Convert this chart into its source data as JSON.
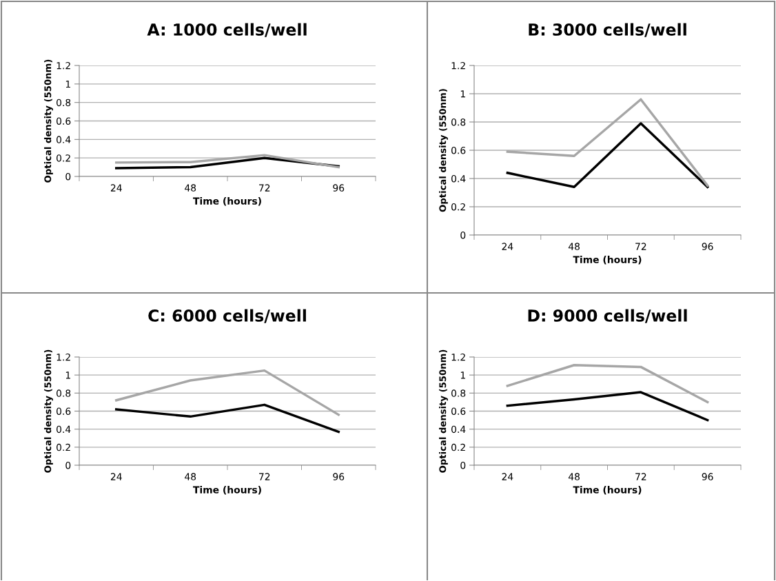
{
  "chart_data": [
    {
      "type": "line",
      "title": "A: 1000 cells/well",
      "xlabel": "Time (hours)",
      "ylabel": "Optical density (550nm)",
      "categories": [
        "24",
        "48",
        "72",
        "96"
      ],
      "ylim": [
        0,
        1.2
      ],
      "yticks": [
        0,
        0.2,
        0.4,
        0.6,
        0.8,
        1,
        1.2
      ],
      "grid": "y",
      "legend": false,
      "marker": "none",
      "series": [
        {
          "color": "#000000",
          "values": [
            0.09,
            0.1,
            0.2,
            0.11
          ]
        },
        {
          "color": "#a6a6a6",
          "values": [
            0.15,
            0.155,
            0.23,
            0.1
          ]
        }
      ]
    },
    {
      "type": "line",
      "title": "B: 3000 cells/well",
      "xlabel": "Time (hours)",
      "ylabel": "Optical density (550nm)",
      "categories": [
        "24",
        "48",
        "72",
        "96"
      ],
      "ylim": [
        0,
        1.2
      ],
      "yticks": [
        0,
        0.2,
        0.4,
        0.6,
        0.8,
        1,
        1.2
      ],
      "grid": "y",
      "legend": false,
      "marker": "none",
      "series": [
        {
          "color": "#000000",
          "values": [
            0.44,
            0.34,
            0.79,
            0.34
          ]
        },
        {
          "color": "#a6a6a6",
          "values": [
            0.59,
            0.56,
            0.96,
            0.35
          ]
        }
      ]
    },
    {
      "type": "line",
      "title": "C: 6000 cells/well",
      "xlabel": "Time (hours)",
      "ylabel": "Optical density (550nm)",
      "categories": [
        "24",
        "48",
        "72",
        "96"
      ],
      "ylim": [
        0,
        1.2
      ],
      "yticks": [
        0,
        0.2,
        0.4,
        0.6,
        0.8,
        1,
        1.2
      ],
      "grid": "y",
      "legend": false,
      "marker": "none",
      "series": [
        {
          "color": "#000000",
          "values": [
            0.62,
            0.54,
            0.67,
            0.37
          ]
        },
        {
          "color": "#a6a6a6",
          "values": [
            0.72,
            0.94,
            1.05,
            0.56
          ]
        }
      ]
    },
    {
      "type": "line",
      "title": "D: 9000 cells/well",
      "xlabel": "Time (hours)",
      "ylabel": "Optical density (550nm)",
      "categories": [
        "24",
        "48",
        "72",
        "96"
      ],
      "ylim": [
        0,
        1.2
      ],
      "yticks": [
        0,
        0.2,
        0.4,
        0.6,
        0.8,
        1,
        1.2
      ],
      "grid": "y",
      "legend": false,
      "marker": "none",
      "series": [
        {
          "color": "#000000",
          "values": [
            0.66,
            0.73,
            0.81,
            0.5
          ]
        },
        {
          "color": "#a6a6a6",
          "values": [
            0.88,
            1.11,
            1.09,
            0.7
          ]
        }
      ]
    }
  ]
}
